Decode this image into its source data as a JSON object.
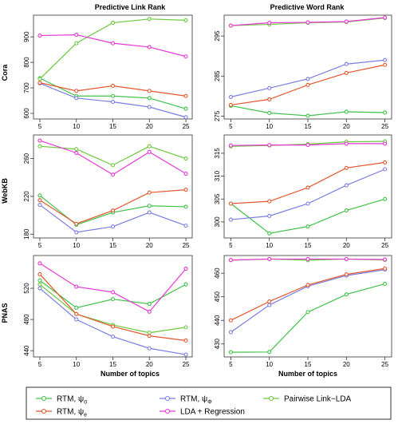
{
  "figure": {
    "col_titles": [
      "Predictive Link Rank",
      "Predictive Word Rank"
    ],
    "row_labels": [
      "Cora",
      "WebKB",
      "PNAS"
    ],
    "xlabel": "Number of topics"
  },
  "legend": [
    {
      "key": "rtm_sigma",
      "label": "RTM, ψσ",
      "base": "RTM, ψ",
      "sub": "σ",
      "color": "#41c14a"
    },
    {
      "key": "rtm_phi",
      "label": "RTM, ψΦ",
      "base": "RTM, ψ",
      "sub": "Φ",
      "color": "#7a7ee0"
    },
    {
      "key": "pairwise",
      "label": "Pairwise Link−LDA",
      "base": "Pairwise Link−LDA",
      "sub": "",
      "color": "#6dc93f"
    },
    {
      "key": "rtm_e",
      "label": "RTM, ψe",
      "base": "RTM, ψ",
      "sub": "e",
      "color": "#e4572e"
    },
    {
      "key": "lda_reg",
      "label": "LDA + Regression",
      "base": "LDA + Regression",
      "sub": "",
      "color": "#e637d4"
    }
  ],
  "chart_data": [
    {
      "type": "line",
      "row": 0,
      "col": 0,
      "title": "Predictive Link Rank",
      "ylabel": "Cora",
      "xlabel": "",
      "x": [
        5,
        10,
        15,
        20,
        25
      ],
      "ylim": [
        578,
        985
      ],
      "yticks": [
        600,
        700,
        800,
        900
      ],
      "series": [
        {
          "key": "rtm_sigma",
          "values": [
            738,
            668,
            668,
            660,
            618
          ]
        },
        {
          "key": "rtm_phi",
          "values": [
            718,
            660,
            645,
            625,
            585
          ]
        },
        {
          "key": "pairwise",
          "values": [
            735,
            875,
            955,
            970,
            965
          ]
        },
        {
          "key": "rtm_e",
          "values": [
            720,
            688,
            708,
            688,
            668
          ]
        },
        {
          "key": "lda_reg",
          "values": [
            905,
            908,
            875,
            860,
            823
          ]
        }
      ]
    },
    {
      "type": "line",
      "row": 0,
      "col": 1,
      "title": "Predictive Word Rank",
      "ylabel": "",
      "xlabel": "",
      "x": [
        5,
        10,
        15,
        20,
        25
      ],
      "ylim": [
        274.3,
        300.2
      ],
      "yticks": [
        275,
        285,
        295
      ],
      "series": [
        {
          "key": "rtm_sigma",
          "values": [
            277.6,
            275.8,
            275.1,
            276.1,
            275.9
          ]
        },
        {
          "key": "rtm_phi",
          "values": [
            279.8,
            282.0,
            284.3,
            288.0,
            289.0
          ]
        },
        {
          "key": "pairwise",
          "values": [
            297.6,
            297.9,
            298.3,
            298.5,
            299.5
          ]
        },
        {
          "key": "rtm_e",
          "values": [
            277.8,
            279.2,
            282.8,
            285.8,
            287.8
          ]
        },
        {
          "key": "lda_reg",
          "values": [
            297.6,
            298.3,
            298.4,
            298.6,
            299.6
          ]
        }
      ]
    },
    {
      "type": "line",
      "row": 1,
      "col": 0,
      "title": "",
      "ylabel": "WebKB",
      "xlabel": "",
      "x": [
        5,
        10,
        15,
        20,
        25
      ],
      "ylim": [
        176,
        285
      ],
      "yticks": [
        180,
        220,
        260
      ],
      "series": [
        {
          "key": "rtm_sigma",
          "values": [
            221,
            190,
            203,
            210,
            209
          ]
        },
        {
          "key": "rtm_phi",
          "values": [
            211,
            182,
            188,
            203,
            189
          ]
        },
        {
          "key": "pairwise",
          "values": [
            273,
            270,
            253,
            273,
            260
          ]
        },
        {
          "key": "rtm_e",
          "values": [
            216,
            191,
            205,
            224,
            227
          ]
        },
        {
          "key": "lda_reg",
          "values": [
            279,
            266,
            243,
            267,
            244
          ]
        }
      ]
    },
    {
      "type": "line",
      "row": 1,
      "col": 1,
      "title": "",
      "ylabel": "",
      "xlabel": "",
      "x": [
        5,
        10,
        15,
        20,
        25
      ],
      "ylim": [
        296.5,
        319
      ],
      "yticks": [
        300,
        305,
        310,
        315
      ],
      "series": [
        {
          "key": "rtm_sigma",
          "values": [
            304.0,
            297.5,
            299.0,
            302.5,
            305.0
          ]
        },
        {
          "key": "rtm_phi",
          "values": [
            300.5,
            301.3,
            304.0,
            308.0,
            311.5
          ]
        },
        {
          "key": "pairwise",
          "values": [
            316.5,
            316.7,
            317.0,
            317.5,
            317.6
          ]
        },
        {
          "key": "rtm_e",
          "values": [
            304.0,
            304.5,
            307.5,
            311.8,
            313.0
          ]
        },
        {
          "key": "lda_reg",
          "values": [
            316.7,
            316.8,
            316.8,
            317.1,
            317.1
          ]
        }
      ]
    },
    {
      "type": "line",
      "row": 2,
      "col": 0,
      "title": "",
      "ylabel": "PNAS",
      "xlabel": "Number of topics",
      "x": [
        5,
        10,
        15,
        20,
        25
      ],
      "ylim": [
        432,
        562
      ],
      "yticks": [
        440,
        480,
        520
      ],
      "series": [
        {
          "key": "rtm_sigma",
          "values": [
            530,
            495,
            506,
            500,
            525
          ]
        },
        {
          "key": "rtm_phi",
          "values": [
            520,
            480,
            458,
            443,
            435
          ]
        },
        {
          "key": "pairwise",
          "values": [
            525,
            487,
            473,
            463,
            470
          ]
        },
        {
          "key": "rtm_e",
          "values": [
            538,
            487,
            471,
            459,
            453
          ]
        },
        {
          "key": "lda_reg",
          "values": [
            552,
            522,
            515,
            490,
            545
          ]
        }
      ]
    },
    {
      "type": "line",
      "row": 2,
      "col": 1,
      "title": "",
      "ylabel": "",
      "xlabel": "Number of topics",
      "x": [
        5,
        10,
        15,
        20,
        25
      ],
      "ylim": [
        424.5,
        467.5
      ],
      "yticks": [
        430,
        440,
        450,
        460
      ],
      "series": [
        {
          "key": "rtm_sigma",
          "values": [
            426.5,
            426.6,
            443.5,
            451.0,
            455.5
          ]
        },
        {
          "key": "rtm_phi",
          "values": [
            435.0,
            446.5,
            454.5,
            459.0,
            461.5
          ]
        },
        {
          "key": "pairwise",
          "values": [
            465.5,
            466.0,
            465.5,
            466.0,
            465.6
          ]
        },
        {
          "key": "rtm_e",
          "values": [
            440.0,
            448.0,
            455.0,
            459.5,
            462.0
          ]
        },
        {
          "key": "lda_reg",
          "values": [
            465.6,
            466.0,
            466.0,
            466.0,
            465.8
          ]
        }
      ]
    }
  ]
}
